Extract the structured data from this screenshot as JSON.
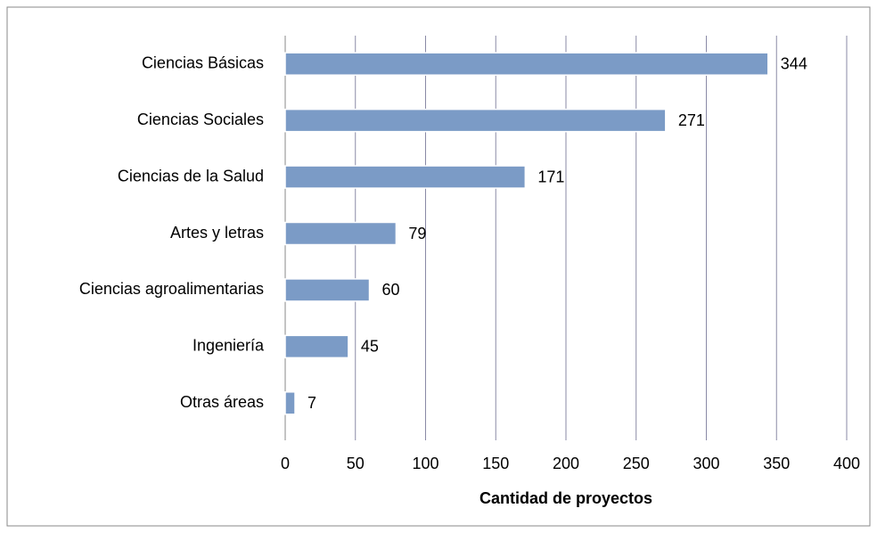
{
  "chart_data": {
    "type": "bar",
    "x_label": "Cantidad de proyectos",
    "categories": [
      "Ciencias Básicas",
      "Ciencias Sociales",
      "Ciencias de la Salud",
      "Artes y letras",
      "Ciencias agroalimentarias",
      "Ingeniería",
      "Otras áreas"
    ],
    "values": [
      344,
      271,
      171,
      79,
      60,
      45,
      7
    ],
    "color": "#7b9bc6",
    "xlim": [
      0,
      400
    ],
    "xticks": [
      0,
      50,
      100,
      150,
      200,
      250,
      300,
      350,
      400
    ],
    "grid": true
  }
}
